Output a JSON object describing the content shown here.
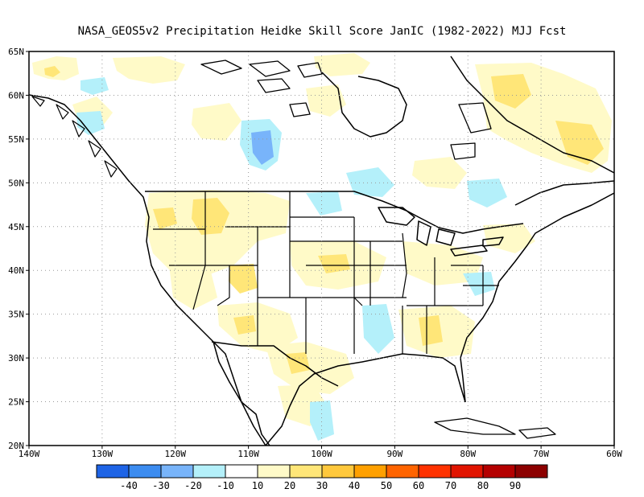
{
  "title": "NASA_GEOS5v2  Precipitation Heidke Skill Score JanIC (1982-2022) MJJ Fcst",
  "map": {
    "lon_range": [
      -140,
      -60
    ],
    "lat_range": [
      20,
      65
    ],
    "lon_ticks": [
      {
        "value": -140,
        "label": "140W"
      },
      {
        "value": -130,
        "label": "130W"
      },
      {
        "value": -120,
        "label": "120W"
      },
      {
        "value": -110,
        "label": "110W"
      },
      {
        "value": -100,
        "label": "100W"
      },
      {
        "value": -90,
        "label": "90W"
      },
      {
        "value": -80,
        "label": "80W"
      },
      {
        "value": -70,
        "label": "70W"
      },
      {
        "value": -60,
        "label": "60W"
      }
    ],
    "lat_ticks": [
      {
        "value": 20,
        "label": "20N"
      },
      {
        "value": 25,
        "label": "25N"
      },
      {
        "value": 30,
        "label": "30N"
      },
      {
        "value": 35,
        "label": "35N"
      },
      {
        "value": 40,
        "label": "40N"
      },
      {
        "value": 45,
        "label": "45N"
      },
      {
        "value": 50,
        "label": "50N"
      },
      {
        "value": 55,
        "label": "55N"
      },
      {
        "value": 60,
        "label": "60N"
      },
      {
        "value": 65,
        "label": "65N"
      }
    ],
    "gridlines": true
  },
  "colorbar": {
    "colors": [
      "#1e64e6",
      "#3c8cf0",
      "#78b4fa",
      "#b4f0fa",
      "#ffffff",
      "#fffac8",
      "#ffe678",
      "#ffc83c",
      "#ffa000",
      "#ff6400",
      "#ff3200",
      "#e11400",
      "#b40000",
      "#8c0000"
    ],
    "labels": [
      "-40",
      "-30",
      "-20",
      "-10",
      "10",
      "20",
      "30",
      "40",
      "50",
      "60",
      "70",
      "80",
      "90"
    ]
  },
  "field_colors": {
    "pos10": "#fffac8",
    "pos20": "#ffe678",
    "neg10": "#b4f0fa",
    "neg20": "#78b4fa"
  }
}
